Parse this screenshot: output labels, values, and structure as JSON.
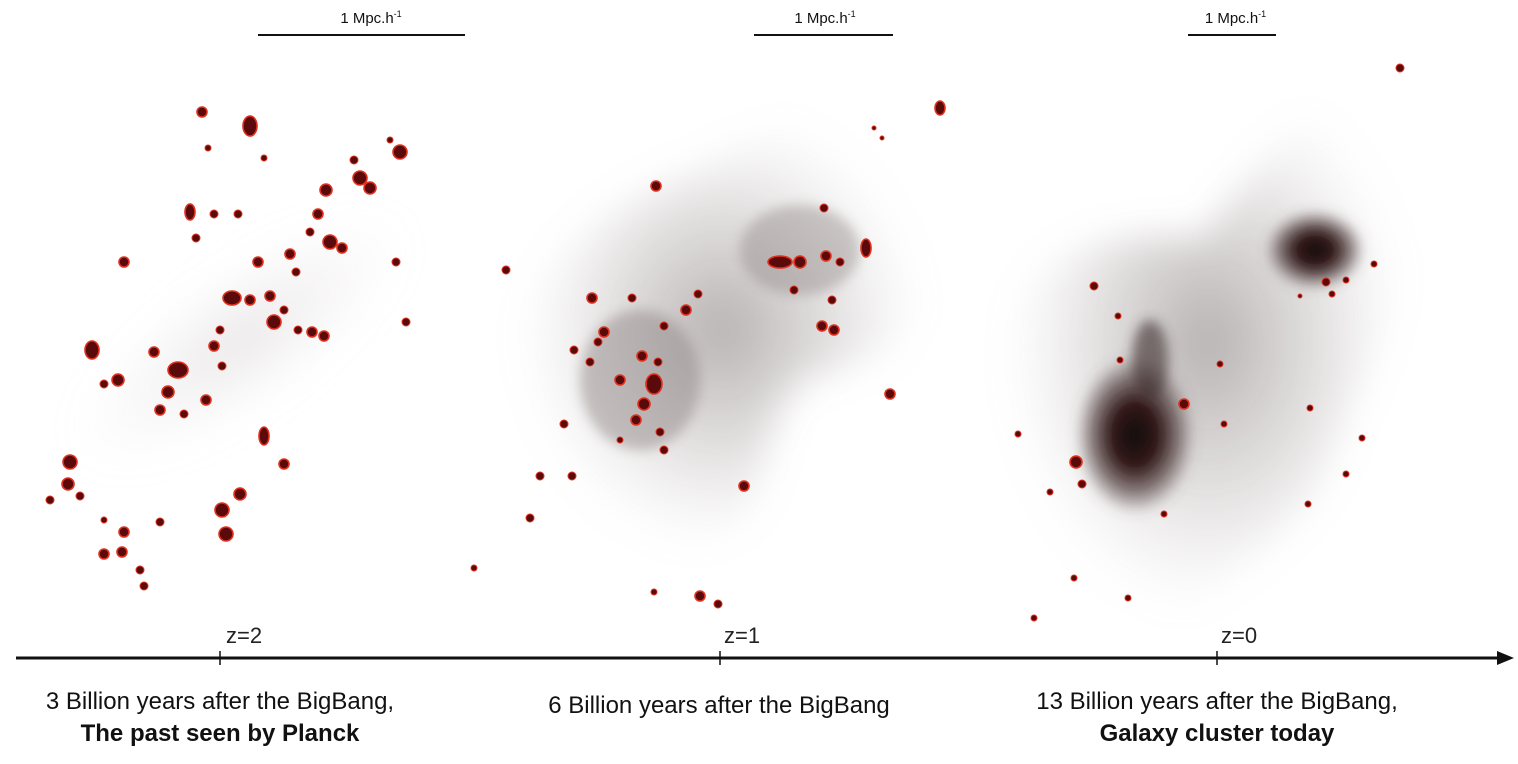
{
  "scale_bar": {
    "label_prefix": "1 Mpc.h",
    "label_exponent": "-1"
  },
  "timeline": [
    {
      "z_label": "z=2",
      "caption_line1": "3 Billion years after the BigBang,",
      "caption_line2": "The past seen by Planck"
    },
    {
      "z_label": "z=1",
      "caption_line1": "6 Billion years after the BigBang",
      "caption_line2": ""
    },
    {
      "z_label": "z=0",
      "caption_line1": "13 Billion years after the BigBang,",
      "caption_line2": "Galaxy cluster today"
    }
  ],
  "colors": {
    "clump_core": "#5a0a0a",
    "clump_edge": "#e0301e",
    "halo_dark": "#150707",
    "halo_light": "#8a8080",
    "axis": "#111111"
  }
}
